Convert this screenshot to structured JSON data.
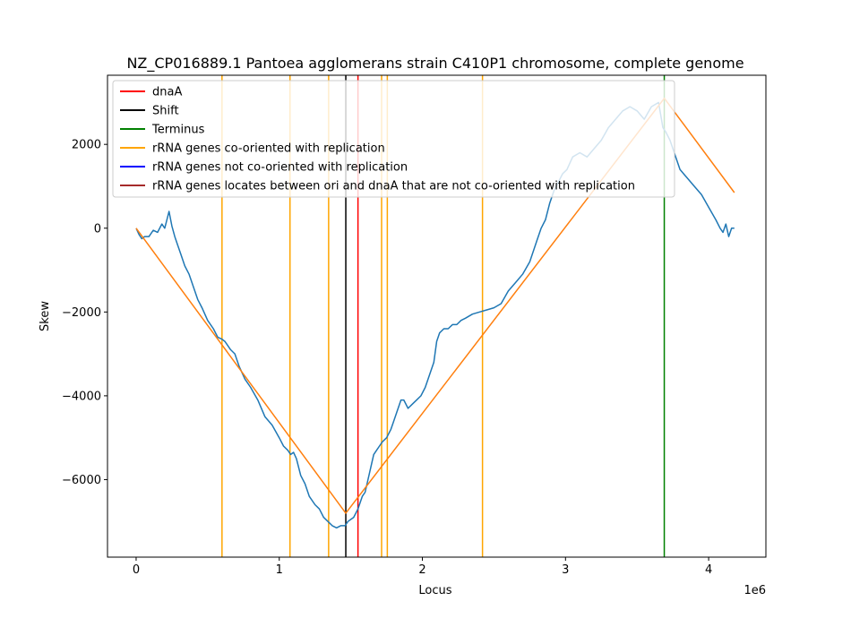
{
  "chart_data": {
    "type": "line",
    "title": "NZ_CP016889.1 Pantoea agglomerans strain C410P1 chromosome, complete genome",
    "xlabel": "Locus",
    "ylabel": "Skew",
    "x_offset_text": "1e6",
    "xlim": [
      -200000,
      4400000
    ],
    "ylim": [
      -7850,
      3650
    ],
    "xticks": [
      0,
      1000000,
      2000000,
      3000000,
      4000000
    ],
    "xtick_labels": [
      "0",
      "1",
      "2",
      "3",
      "4"
    ],
    "yticks": [
      -6000,
      -4000,
      -2000,
      0,
      2000
    ],
    "ytick_labels": [
      "−6000",
      "−4000",
      "−2000",
      "0",
      "2000"
    ],
    "grid": false,
    "legend_position": "upper-left",
    "colors": {
      "skew": "#1f77b4",
      "fit": "#ff7f0e",
      "dnaA": "#ff0000",
      "shift": "#000000",
      "terminus": "#008000",
      "rrna_co": "#ffa500",
      "rrna_not_co": "#0000ff",
      "rrna_between": "#a52a2a"
    },
    "legend": [
      {
        "label": "dnaA",
        "color": "#ff0000"
      },
      {
        "label": "Shift",
        "color": "#000000"
      },
      {
        "label": "Terminus",
        "color": "#008000"
      },
      {
        "label": "rRNA genes co-oriented with replication",
        "color": "#ffa500"
      },
      {
        "label": "rRNA genes not co-oriented with replication",
        "color": "#0000ff"
      },
      {
        "label": "rRNA genes locates between ori and dnaA that are not co-oriented with replication",
        "color": "#a52a2a"
      }
    ],
    "vertical_lines": {
      "dnaA": [
        1550000
      ],
      "shift": [
        1465000
      ],
      "terminus": [
        3690000
      ],
      "rrna_co": [
        600000,
        1075000,
        1345000,
        1715000,
        1755000,
        2420000
      ]
    },
    "series": [
      {
        "type": "skew",
        "x": [
          0,
          20000,
          40000,
          60000,
          90000,
          120000,
          150000,
          180000,
          200000,
          230000,
          250000,
          270000,
          290000,
          310000,
          340000,
          370000,
          400000,
          430000,
          460000,
          500000,
          540000,
          570000,
          600000,
          620000,
          640000,
          660000,
          690000,
          720000,
          760000,
          800000,
          850000,
          900000,
          950000,
          1000000,
          1030000,
          1060000,
          1080000,
          1100000,
          1120000,
          1150000,
          1180000,
          1210000,
          1250000,
          1280000,
          1310000,
          1340000,
          1370000,
          1400000,
          1430000,
          1460000,
          1480000,
          1500000,
          1520000,
          1550000,
          1580000,
          1600000,
          1620000,
          1640000,
          1660000,
          1680000,
          1700000,
          1720000,
          1750000,
          1780000,
          1800000,
          1820000,
          1850000,
          1870000,
          1900000,
          1930000,
          1960000,
          1990000,
          2020000,
          2050000,
          2080000,
          2100000,
          2120000,
          2150000,
          2180000,
          2210000,
          2240000,
          2270000,
          2300000,
          2350000,
          2400000,
          2450000,
          2500000,
          2550000,
          2600000,
          2650000,
          2700000,
          2750000,
          2800000,
          2830000,
          2860000,
          2890000,
          2920000,
          2950000,
          2980000,
          3010000,
          3050000,
          3100000,
          3150000,
          3200000,
          3250000,
          3300000,
          3350000,
          3400000,
          3450000,
          3500000,
          3550000,
          3600000,
          3650000,
          3680000,
          3700000,
          3730000,
          3760000,
          3800000,
          3850000,
          3900000,
          3950000,
          4000000,
          4050000,
          4080000,
          4100000,
          4120000,
          4140000,
          4160000,
          4180000
        ],
        "y": [
          0,
          -150,
          -250,
          -200,
          -200,
          -50,
          -100,
          100,
          0,
          400,
          50,
          -200,
          -400,
          -600,
          -900,
          -1100,
          -1400,
          -1700,
          -1900,
          -2200,
          -2400,
          -2600,
          -2650,
          -2700,
          -2800,
          -2900,
          -3000,
          -3300,
          -3600,
          -3800,
          -4100,
          -4500,
          -4700,
          -5000,
          -5200,
          -5300,
          -5400,
          -5350,
          -5500,
          -5900,
          -6100,
          -6400,
          -6600,
          -6700,
          -6900,
          -7000,
          -7100,
          -7150,
          -7100,
          -7100,
          -7000,
          -6950,
          -6900,
          -6700,
          -6400,
          -6300,
          -6000,
          -5700,
          -5400,
          -5300,
          -5200,
          -5100,
          -5000,
          -4800,
          -4600,
          -4400,
          -4100,
          -4100,
          -4300,
          -4200,
          -4100,
          -4000,
          -3800,
          -3500,
          -3200,
          -2700,
          -2500,
          -2400,
          -2400,
          -2300,
          -2300,
          -2200,
          -2150,
          -2050,
          -2000,
          -1950,
          -1900,
          -1800,
          -1500,
          -1300,
          -1100,
          -800,
          -300,
          0,
          200,
          600,
          900,
          1100,
          1300,
          1400,
          1700,
          1800,
          1700,
          1900,
          2100,
          2400,
          2600,
          2800,
          2900,
          2800,
          2600,
          2900,
          3000,
          2400,
          2300,
          2100,
          1800,
          1400,
          1200,
          1000,
          800,
          500,
          200,
          0,
          -100,
          100,
          -200,
          0,
          0
        ]
      },
      {
        "type": "fit",
        "x": [
          0,
          1465000,
          3690000,
          4180000
        ],
        "y": [
          0,
          -6800,
          3100,
          850
        ]
      }
    ]
  }
}
